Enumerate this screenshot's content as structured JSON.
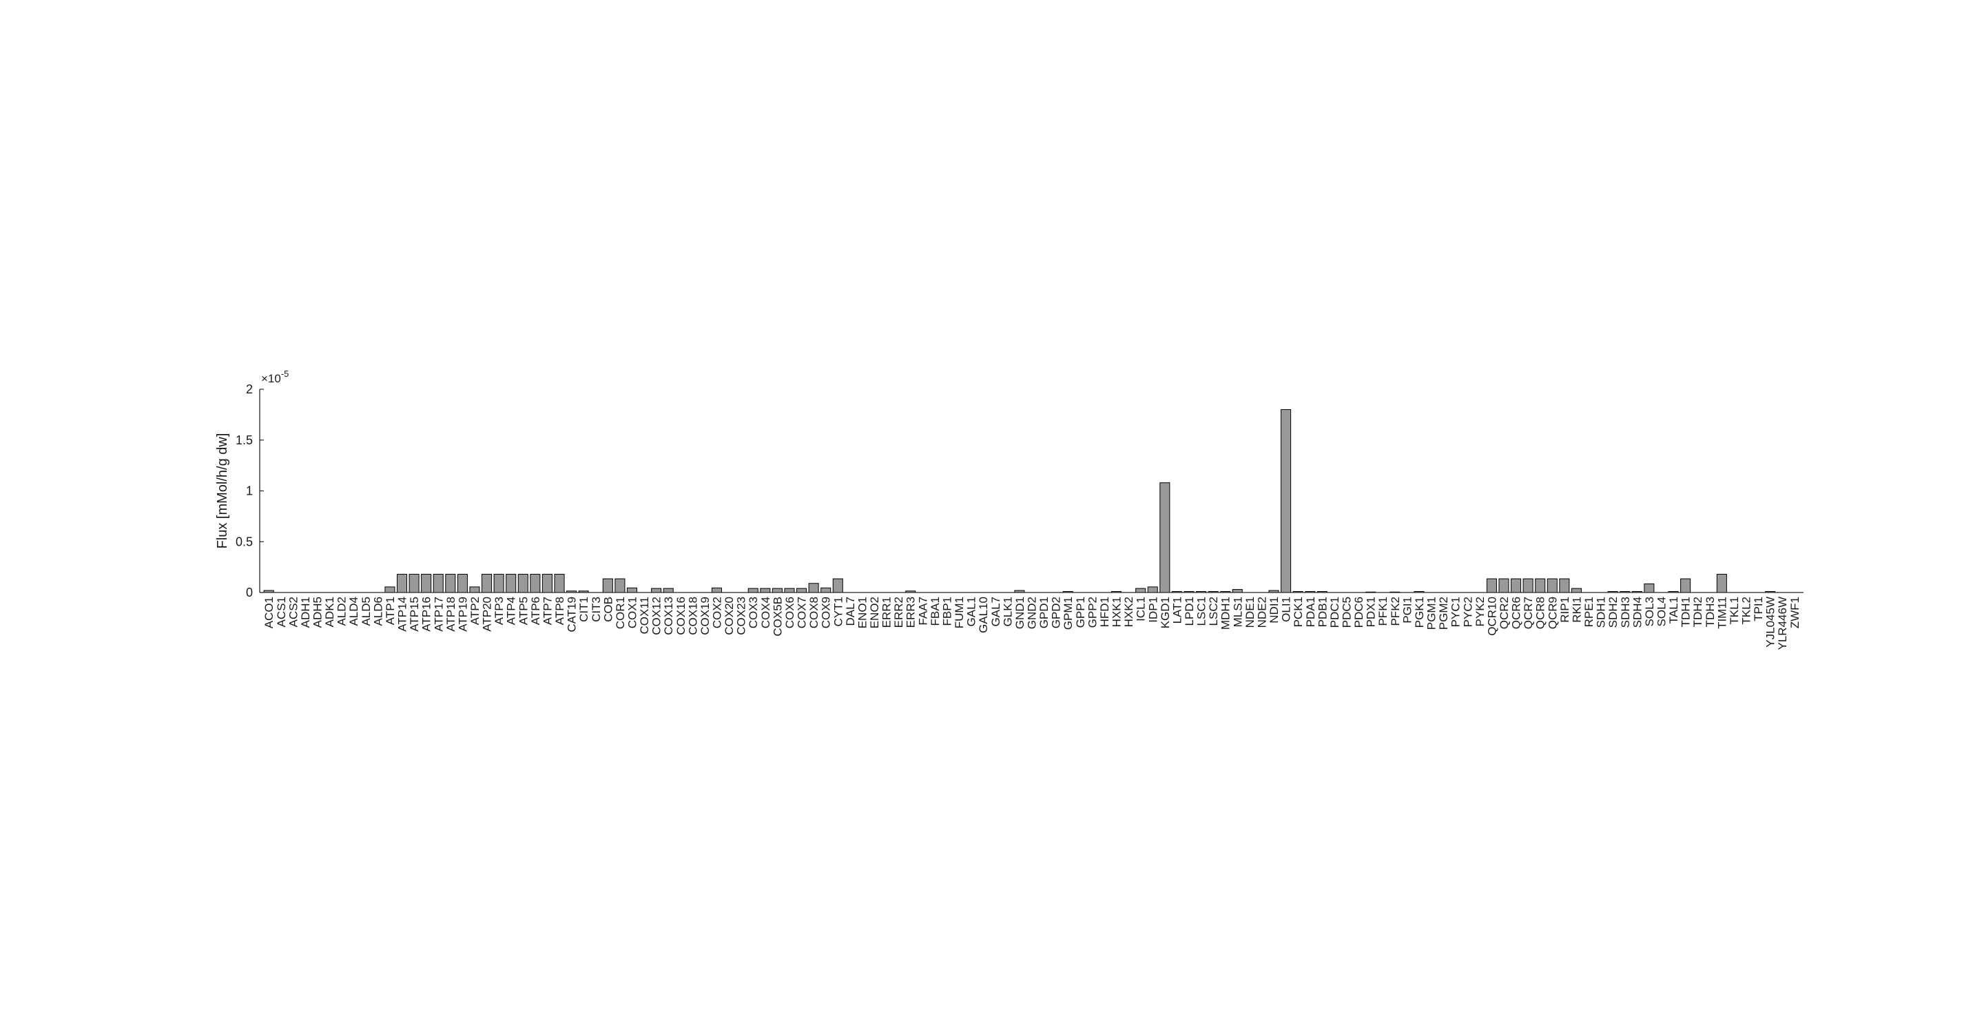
{
  "chart_data": {
    "type": "bar",
    "title": "",
    "xlabel": "",
    "ylabel": "Flux [mMol/h/g dw]",
    "y_exponent_label": "×10",
    "y_exponent_power": "-5",
    "ylim": [
      0,
      2
    ],
    "yticks": [
      0,
      0.5,
      1,
      1.5,
      2
    ],
    "ytick_labels": [
      "0",
      "0.5",
      "1",
      "1.5",
      "2"
    ],
    "bar_color": "#999999",
    "bar_edge_color": "#000000",
    "categories": [
      "ACO1",
      "ACS1",
      "ACS2",
      "ADH1",
      "ADH5",
      "ADK1",
      "ALD2",
      "ALD4",
      "ALD5",
      "ALD6",
      "ATP1",
      "ATP14",
      "ATP15",
      "ATP16",
      "ATP17",
      "ATP18",
      "ATP19",
      "ATP2",
      "ATP20",
      "ATP3",
      "ATP4",
      "ATP5",
      "ATP6",
      "ATP7",
      "ATP8",
      "CAT19",
      "CIT1",
      "CIT3",
      "COB",
      "COR1",
      "COX1",
      "COX11",
      "COX12",
      "COX13",
      "COX16",
      "COX18",
      "COX19",
      "COX2",
      "COX20",
      "COX23",
      "COX3",
      "COX4",
      "COX5B",
      "COX6",
      "COX7",
      "COX8",
      "COX9",
      "CYT1",
      "DAL7",
      "ENO1",
      "ENO2",
      "ERR1",
      "ERR2",
      "ERR3",
      "FAA7",
      "FBA1",
      "FBP1",
      "FUM1",
      "GAL1",
      "GAL10",
      "GAL7",
      "GLK1",
      "GND1",
      "GND2",
      "GPD1",
      "GPD2",
      "GPM1",
      "GPP1",
      "GPP2",
      "HFD1",
      "HXK1",
      "HXK2",
      "ICL1",
      "IDP1",
      "KGD1",
      "LAT1",
      "LPD1",
      "LSC1",
      "LSC2",
      "MDH1",
      "MLS1",
      "NDE1",
      "NDE2",
      "NDI1",
      "OLI1",
      "PCK1",
      "PDA1",
      "PDB1",
      "PDC1",
      "PDC5",
      "PDC6",
      "PDX1",
      "PFK1",
      "PFK2",
      "PGI1",
      "PGK1",
      "PGM1",
      "PGM2",
      "PYC1",
      "PYC2",
      "PYK2",
      "QCR10",
      "QCR2",
      "QCR6",
      "QCR7",
      "QCR8",
      "QCR9",
      "RIP1",
      "RKI1",
      "RPE1",
      "SDH1",
      "SDH2",
      "SDH3",
      "SDH4",
      "SOL3",
      "SOL4",
      "TAL1",
      "TDH1",
      "TDH2",
      "TDH3",
      "TIM11",
      "TKL1",
      "TKL2",
      "TPI1",
      "YJL045W",
      "YLR446W",
      "ZWF1"
    ],
    "values": [
      0.02,
      0,
      0,
      0,
      0,
      0,
      0,
      0,
      0,
      0,
      0.055,
      0.18,
      0.18,
      0.18,
      0.18,
      0.18,
      0.18,
      0.055,
      0.18,
      0.18,
      0.18,
      0.18,
      0.18,
      0.18,
      0.18,
      0.015,
      0.015,
      0,
      0.135,
      0.135,
      0.045,
      0,
      0.04,
      0.04,
      0,
      0,
      0,
      0.045,
      0,
      0,
      0.04,
      0.04,
      0.04,
      0.04,
      0.04,
      0.09,
      0.045,
      0.135,
      0,
      0,
      0,
      0,
      0,
      0.015,
      0,
      0,
      0,
      0,
      0,
      0,
      0,
      0,
      0.02,
      0,
      0,
      0,
      0.01,
      0,
      0,
      0,
      0.01,
      0,
      0.04,
      0.055,
      1.08,
      0.01,
      0.01,
      0.01,
      0.01,
      0.01,
      0.03,
      0,
      0,
      0.02,
      1.8,
      0.01,
      0.01,
      0.01,
      0,
      0,
      0,
      0.005,
      0,
      0.005,
      0,
      0.01,
      0,
      0,
      0,
      0,
      0,
      0.135,
      0.135,
      0.135,
      0.135,
      0.135,
      0.135,
      0.135,
      0.04,
      0,
      0,
      0.01,
      0.01,
      0.01,
      0.085,
      0,
      0.01,
      0.135,
      0,
      0,
      0.18,
      0,
      0,
      0,
      0.01,
      0,
      0
    ]
  }
}
